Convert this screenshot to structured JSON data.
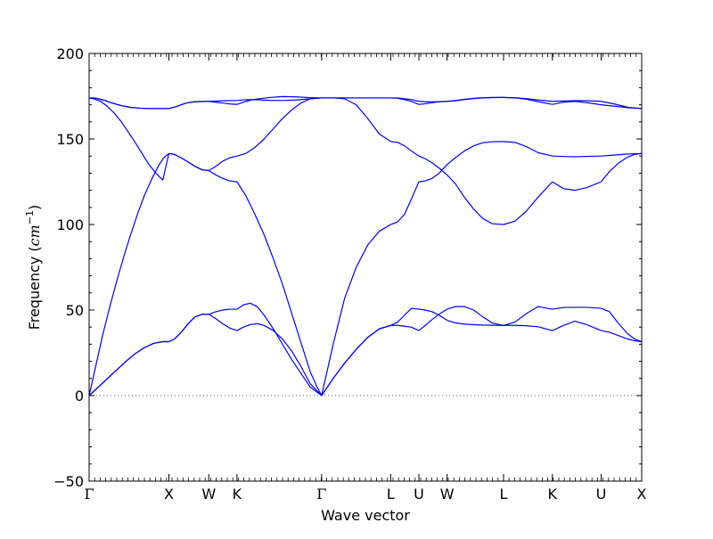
{
  "chart_data": {
    "type": "line",
    "title": "",
    "xlabel": "Wave vector",
    "ylabel": "Frequency",
    "ylabel_unit_base": "cm",
    "ylabel_unit_exp": "−1",
    "ylim": [
      -50,
      200
    ],
    "yticks": [
      -50,
      0,
      50,
      100,
      150,
      200
    ],
    "ytick_labels": [
      "−50",
      "0",
      "50",
      "100",
      "150",
      "200"
    ],
    "xlim": [
      0,
      12.0
    ],
    "xticks": [
      0,
      1.732,
      2.598,
      3.211,
      5.049,
      6.549,
      7.161,
      7.773,
      9.0,
      10.06,
      11.12,
      12.0
    ],
    "xtick_labels": [
      "Γ",
      "X",
      "W",
      "K",
      "Γ",
      "L",
      "U",
      "W",
      "L",
      "K",
      "U",
      "X"
    ],
    "zero_line": true,
    "line_color": "#0000ff",
    "zero_line_color": "#555555",
    "series": [
      {
        "x": [
          0,
          0.1,
          0.2,
          0.35,
          0.5,
          0.7,
          0.9,
          1.1,
          1.3,
          1.5,
          1.732
        ],
        "values": [
          174,
          174,
          173.5,
          172.5,
          171,
          169.5,
          168.5,
          168,
          167.8,
          167.8,
          167.8
        ]
      },
      {
        "x": [
          1.732,
          1.9,
          2.1,
          2.3,
          2.598
        ],
        "values": [
          167.8,
          169,
          171,
          171.8,
          172
        ]
      },
      {
        "x": [
          2.598,
          2.75,
          2.9,
          3.05,
          3.211
        ],
        "values": [
          172,
          171.5,
          171,
          170.5,
          170.2
        ]
      },
      {
        "x": [
          3.211,
          3.4,
          3.6,
          3.9,
          4.2,
          4.5,
          4.8,
          5.049
        ],
        "values": [
          170.2,
          172,
          173.2,
          174.2,
          174.8,
          174.6,
          174.2,
          174
        ]
      },
      {
        "x": [
          0,
          0.1,
          0.2,
          0.35,
          0.5,
          0.7,
          0.9,
          1.1,
          1.3,
          1.5,
          1.732
        ],
        "values": [
          174,
          174,
          173.5,
          172.5,
          171,
          169.5,
          168.5,
          168,
          167.8,
          167.8,
          167.8
        ]
      },
      {
        "x": [
          1.732,
          1.9,
          2.1,
          2.3,
          2.598
        ],
        "values": [
          167.8,
          169,
          171,
          171.8,
          172
        ]
      },
      {
        "x": [
          2.598,
          2.8,
          3.0,
          3.211
        ],
        "values": [
          172,
          172.2,
          172.4,
          172.5
        ]
      },
      {
        "x": [
          3.211,
          3.4,
          3.6,
          3.9,
          4.2,
          4.5,
          4.8,
          5.049
        ],
        "values": [
          172.5,
          173,
          173,
          172.6,
          172.5,
          172.8,
          173.5,
          174
        ]
      },
      {
        "x": [
          0,
          0.1,
          0.25,
          0.4,
          0.55,
          0.7,
          0.85,
          1.0,
          1.15,
          1.3,
          1.45,
          1.6,
          1.732
        ],
        "values": [
          174,
          173.5,
          172,
          169,
          165,
          160,
          154,
          148,
          141.5,
          135,
          130,
          126,
          141.5
        ]
      },
      {
        "x": [
          0,
          0.15,
          0.3,
          0.45,
          0.6,
          0.75,
          0.9,
          1.05,
          1.2,
          1.35,
          1.5,
          1.62,
          1.732
        ],
        "values": [
          0,
          18,
          36,
          52,
          67,
          81,
          94,
          106,
          117,
          126,
          134,
          139,
          141.5
        ]
      },
      {
        "x": [
          1.732,
          1.85,
          2.0,
          2.15,
          2.3,
          2.45,
          2.598
        ],
        "values": [
          141.5,
          141,
          139,
          136.5,
          134,
          132,
          131.5
        ]
      },
      {
        "x": [
          1.732,
          1.85,
          2.0,
          2.15,
          2.3,
          2.45,
          2.598
        ],
        "values": [
          141.5,
          141,
          139,
          136.5,
          134,
          132,
          131.5
        ]
      },
      {
        "x": [
          2.598,
          2.75,
          2.9,
          3.05,
          3.211
        ],
        "values": [
          131.5,
          134,
          137,
          139,
          140
        ]
      },
      {
        "x": [
          2.598,
          2.75,
          2.9,
          3.05,
          3.211
        ],
        "values": [
          131.5,
          129,
          127,
          125.5,
          125
        ]
      },
      {
        "x": [
          3.211,
          3.4,
          3.6,
          3.8,
          4.0,
          4.2,
          4.4,
          4.6,
          4.8,
          5.049
        ],
        "values": [
          140,
          141.5,
          145,
          150,
          156,
          162,
          167,
          171,
          173.5,
          174
        ]
      },
      {
        "x": [
          3.211,
          3.4,
          3.6,
          3.8,
          4.0,
          4.2,
          4.4,
          4.6,
          4.8,
          4.95,
          5.049
        ],
        "values": [
          125,
          117,
          106,
          94,
          80,
          65,
          48,
          31,
          14,
          5,
          0
        ]
      },
      {
        "x": [
          0,
          0.2,
          0.4,
          0.6,
          0.8,
          1.0,
          1.2,
          1.4,
          1.6,
          1.732
        ],
        "values": [
          0,
          5,
          10,
          15,
          20,
          24.5,
          28,
          30.5,
          31.5,
          31.5
        ]
      },
      {
        "x": [
          0,
          0.2,
          0.4,
          0.6,
          0.8,
          1.0,
          1.2,
          1.4,
          1.6,
          1.732
        ],
        "values": [
          0,
          5,
          10,
          15,
          20,
          24.5,
          28,
          30.5,
          31.5,
          31.5
        ]
      },
      {
        "x": [
          1.732,
          1.85,
          2.0,
          2.15,
          2.3,
          2.45,
          2.598
        ],
        "values": [
          31.5,
          33,
          37,
          42,
          46,
          47.5,
          47.5
        ]
      },
      {
        "x": [
          1.732,
          1.85,
          2.0,
          2.15,
          2.3,
          2.45,
          2.598
        ],
        "values": [
          31.5,
          33,
          37,
          42,
          46,
          47.5,
          47.5
        ]
      },
      {
        "x": [
          2.598,
          2.75,
          2.9,
          3.05,
          3.211
        ],
        "values": [
          47.5,
          49,
          50,
          50.5,
          50.5
        ]
      },
      {
        "x": [
          2.598,
          2.75,
          2.9,
          3.05,
          3.211
        ],
        "values": [
          47.5,
          45,
          42,
          39.5,
          38
        ]
      },
      {
        "x": [
          3.211,
          3.35,
          3.5,
          3.65,
          3.8,
          4.0,
          4.2,
          4.4,
          4.6,
          4.8,
          5.049
        ],
        "values": [
          50.5,
          53,
          54,
          52,
          47,
          39,
          30,
          21,
          13,
          5,
          0
        ]
      },
      {
        "x": [
          3.211,
          3.35,
          3.5,
          3.65,
          3.8,
          4.0,
          4.2,
          4.4,
          4.6,
          4.8,
          5.049
        ],
        "values": [
          38,
          40,
          41.5,
          42,
          41,
          38,
          33,
          26,
          17,
          7,
          0
        ]
      },
      {
        "x": [
          5.049,
          5.3,
          5.55,
          5.8,
          6.05,
          6.3,
          6.549
        ],
        "values": [
          174,
          174,
          173.5,
          170,
          162,
          153,
          148.5
        ]
      },
      {
        "x": [
          5.049,
          5.3,
          5.55,
          5.8,
          6.05,
          6.3,
          6.549
        ],
        "values": [
          0,
          30,
          57,
          75,
          88,
          96,
          100
        ]
      },
      {
        "x": [
          5.049,
          5.3,
          5.55,
          5.8,
          6.05,
          6.3,
          6.549
        ],
        "values": [
          0,
          10,
          19,
          27,
          34,
          39,
          41
        ]
      },
      {
        "x": [
          5.049,
          5.3,
          5.55,
          5.8,
          6.05,
          6.3,
          6.549
        ],
        "values": [
          0,
          10,
          19,
          27,
          34,
          39,
          41
        ]
      },
      {
        "x": [
          5.049,
          5.3,
          5.55,
          5.8,
          6.05,
          6.3,
          6.549
        ],
        "values": [
          174,
          174,
          174,
          174,
          174,
          174,
          174
        ]
      },
      {
        "x": [
          5.049,
          5.3,
          5.55,
          5.8,
          6.05,
          6.3,
          6.549
        ],
        "values": [
          174,
          174,
          174,
          174,
          174,
          174,
          174
        ]
      },
      {
        "x": [
          6.549,
          6.7,
          6.85,
          7.0,
          7.161
        ],
        "values": [
          148.5,
          148,
          146,
          143,
          140
        ]
      },
      {
        "x": [
          6.549,
          6.7,
          6.85,
          7.0,
          7.161
        ],
        "values": [
          100,
          101.5,
          106,
          115,
          125
        ]
      },
      {
        "x": [
          6.549,
          6.7,
          6.85,
          7.0,
          7.161
        ],
        "values": [
          41,
          43,
          47,
          51,
          50.5
        ]
      },
      {
        "x": [
          6.549,
          6.7,
          6.85,
          7.0,
          7.161
        ],
        "values": [
          41,
          41,
          40.5,
          40,
          38
        ]
      },
      {
        "x": [
          6.549,
          6.7,
          6.85,
          7.0,
          7.161
        ],
        "values": [
          174,
          174,
          173.5,
          173,
          172
        ]
      },
      {
        "x": [
          6.549,
          6.7,
          6.85,
          7.0,
          7.161
        ],
        "values": [
          174,
          173.8,
          173,
          172,
          170.2
        ]
      },
      {
        "x": [
          7.161,
          7.3,
          7.45,
          7.6,
          7.773
        ],
        "values": [
          140,
          138.5,
          136,
          133,
          129
        ]
      },
      {
        "x": [
          7.161,
          7.3,
          7.45,
          7.6,
          7.773
        ],
        "values": [
          125,
          125.5,
          127,
          130,
          135
        ]
      },
      {
        "x": [
          7.161,
          7.3,
          7.45,
          7.6,
          7.773
        ],
        "values": [
          50.5,
          50,
          49,
          47,
          44
        ]
      },
      {
        "x": [
          7.161,
          7.3,
          7.45,
          7.6,
          7.773
        ],
        "values": [
          38,
          41,
          44.5,
          47.5,
          50.5
        ]
      },
      {
        "x": [
          7.161,
          7.3,
          7.45,
          7.6,
          7.773
        ],
        "values": [
          172,
          171.8,
          171.7,
          171.8,
          172
        ]
      },
      {
        "x": [
          7.161,
          7.3,
          7.45,
          7.6,
          7.773
        ],
        "values": [
          170.2,
          170.6,
          171.2,
          171.8,
          172
        ]
      },
      {
        "x": [
          7.773,
          7.95,
          8.15,
          8.35,
          8.55,
          8.75,
          9.0
        ],
        "values": [
          129,
          124,
          116,
          109,
          103.5,
          100.5,
          100
        ]
      },
      {
        "x": [
          7.773,
          7.95,
          8.15,
          8.35,
          8.55,
          8.75,
          9.0
        ],
        "values": [
          135,
          139,
          143,
          146,
          147.8,
          148.4,
          148.5
        ]
      },
      {
        "x": [
          7.773,
          7.95,
          8.15,
          8.35,
          8.55,
          8.75,
          9.0
        ],
        "values": [
          44,
          42.5,
          41.8,
          41.4,
          41.2,
          41.1,
          41
        ]
      },
      {
        "x": [
          7.773,
          7.95,
          8.15,
          8.35,
          8.55,
          8.75,
          9.0
        ],
        "values": [
          50.5,
          52,
          52,
          50,
          46,
          42.5,
          41
        ]
      },
      {
        "x": [
          7.773,
          7.95,
          8.15,
          8.35,
          8.55,
          8.75,
          9.0
        ],
        "values": [
          172,
          172.3,
          173,
          173.6,
          174,
          174.2,
          174.3
        ]
      },
      {
        "x": [
          7.773,
          7.95,
          8.15,
          8.35,
          8.55,
          8.75,
          9.0
        ],
        "values": [
          172,
          172.5,
          173.2,
          173.8,
          174.1,
          174.3,
          174.3
        ]
      },
      {
        "x": [
          9.0,
          9.25,
          9.5,
          9.75,
          10.06
        ],
        "values": [
          148.5,
          148,
          145.5,
          142,
          140
        ]
      },
      {
        "x": [
          9.0,
          9.25,
          9.5,
          9.75,
          10.06
        ],
        "values": [
          100,
          102,
          108,
          116,
          125
        ]
      },
      {
        "x": [
          9.0,
          9.25,
          9.5,
          9.75,
          10.06
        ],
        "values": [
          41,
          43,
          48,
          52,
          50.5
        ]
      },
      {
        "x": [
          9.0,
          9.25,
          9.5,
          9.75,
          10.06
        ],
        "values": [
          41,
          41,
          40.8,
          40.2,
          38
        ]
      },
      {
        "x": [
          9.0,
          9.25,
          9.5,
          9.75,
          10.06
        ],
        "values": [
          174.3,
          174.1,
          173.6,
          172.8,
          172
        ]
      },
      {
        "x": [
          9.0,
          9.25,
          9.5,
          9.75,
          10.06
        ],
        "values": [
          174.3,
          174,
          173.2,
          171.8,
          170.2
        ]
      },
      {
        "x": [
          10.06,
          10.3,
          10.55,
          10.8,
          11.12
        ],
        "values": [
          140,
          139.8,
          139.6,
          139.8,
          140
        ]
      },
      {
        "x": [
          10.06,
          10.3,
          10.55,
          10.8,
          11.12
        ],
        "values": [
          125,
          121,
          120,
          121.5,
          125
        ]
      },
      {
        "x": [
          10.06,
          10.3,
          10.55,
          10.8,
          11.12
        ],
        "values": [
          50.5,
          51.5,
          51.6,
          51.6,
          51
        ]
      },
      {
        "x": [
          10.06,
          10.3,
          10.55,
          10.8,
          11.12
        ],
        "values": [
          38,
          41,
          43.5,
          41.5,
          38
        ]
      },
      {
        "x": [
          10.06,
          10.3,
          10.55,
          10.8,
          11.12
        ],
        "values": [
          172,
          172.2,
          172.4,
          172.4,
          172
        ]
      },
      {
        "x": [
          10.06,
          10.3,
          10.55,
          10.8,
          11.12
        ],
        "values": [
          170.2,
          171.5,
          172,
          171.3,
          170
        ]
      },
      {
        "x": [
          11.12,
          11.35,
          11.6,
          11.8,
          12.0
        ],
        "values": [
          140,
          140.5,
          141,
          141.3,
          141.5
        ]
      },
      {
        "x": [
          11.12,
          11.3,
          11.5,
          11.7,
          11.85,
          12.0
        ],
        "values": [
          125,
          131,
          136,
          139.5,
          141,
          141.5
        ]
      },
      {
        "x": [
          11.12,
          11.3,
          11.5,
          11.7,
          11.85,
          12.0
        ],
        "values": [
          51,
          49,
          42,
          36,
          33,
          31.5
        ]
      },
      {
        "x": [
          11.12,
          11.3,
          11.5,
          11.7,
          11.85,
          12.0
        ],
        "values": [
          38,
          37,
          35,
          33,
          32,
          31.5
        ]
      },
      {
        "x": [
          11.12,
          11.4,
          11.7,
          12.0
        ],
        "values": [
          172,
          170.5,
          168.5,
          167.8
        ]
      },
      {
        "x": [
          11.12,
          11.4,
          11.7,
          12.0
        ],
        "values": [
          170,
          169.2,
          168.3,
          167.8
        ]
      }
    ]
  }
}
